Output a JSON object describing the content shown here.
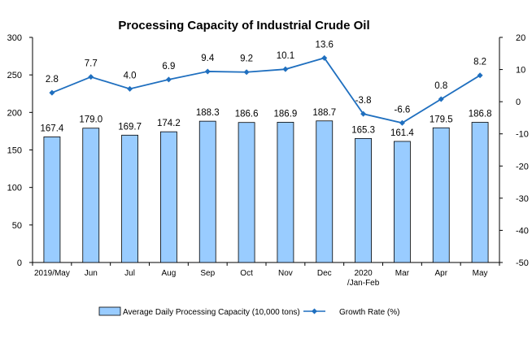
{
  "chart_data": {
    "type": "bar",
    "title": "Processing Capacity of Industrial Crude Oil",
    "categories": [
      [
        "2019/May"
      ],
      [
        "Jun"
      ],
      [
        "Jul"
      ],
      [
        "Aug"
      ],
      [
        "Sep"
      ],
      [
        "Oct"
      ],
      [
        "Nov"
      ],
      [
        "Dec"
      ],
      [
        "2020",
        "/Jan-Feb"
      ],
      [
        "Mar"
      ],
      [
        "Apr"
      ],
      [
        "May"
      ]
    ],
    "series": [
      {
        "name": "Average Daily Processing Capacity (10,000 tons)",
        "type": "bar",
        "axis": "left",
        "color": "#99ccff",
        "values": [
          167.4,
          179.0,
          169.7,
          174.2,
          188.3,
          186.6,
          186.9,
          188.7,
          165.3,
          161.4,
          179.5,
          186.8
        ],
        "labels": [
          "167.4",
          "179.0",
          "169.7",
          "174.2",
          "188.3",
          "186.6",
          "186.9",
          "188.7",
          "165.3",
          "161.4",
          "179.5",
          "186.8"
        ]
      },
      {
        "name": "Growth Rate (%)",
        "type": "line",
        "axis": "right",
        "color": "#1f6fbf",
        "values": [
          2.8,
          7.7,
          4.0,
          6.9,
          9.4,
          9.2,
          10.1,
          13.6,
          -3.8,
          -6.6,
          0.8,
          8.2
        ],
        "labels": [
          "2.8",
          "7.7",
          "4.0",
          "6.9",
          "9.4",
          "9.2",
          "10.1",
          "13.6",
          "-3.8",
          "-6.6",
          "0.8",
          "8.2"
        ]
      }
    ],
    "y_left": {
      "min": 0,
      "max": 300,
      "ticks": [
        "0",
        "50",
        "100",
        "150",
        "200",
        "250",
        "300"
      ]
    },
    "y_right": {
      "min": -50,
      "max": 20,
      "ticks": [
        "-50",
        "-40",
        "-30",
        "-20",
        "-10",
        "0",
        "10",
        "20"
      ]
    },
    "grid": false,
    "legend_position": "bottom"
  }
}
